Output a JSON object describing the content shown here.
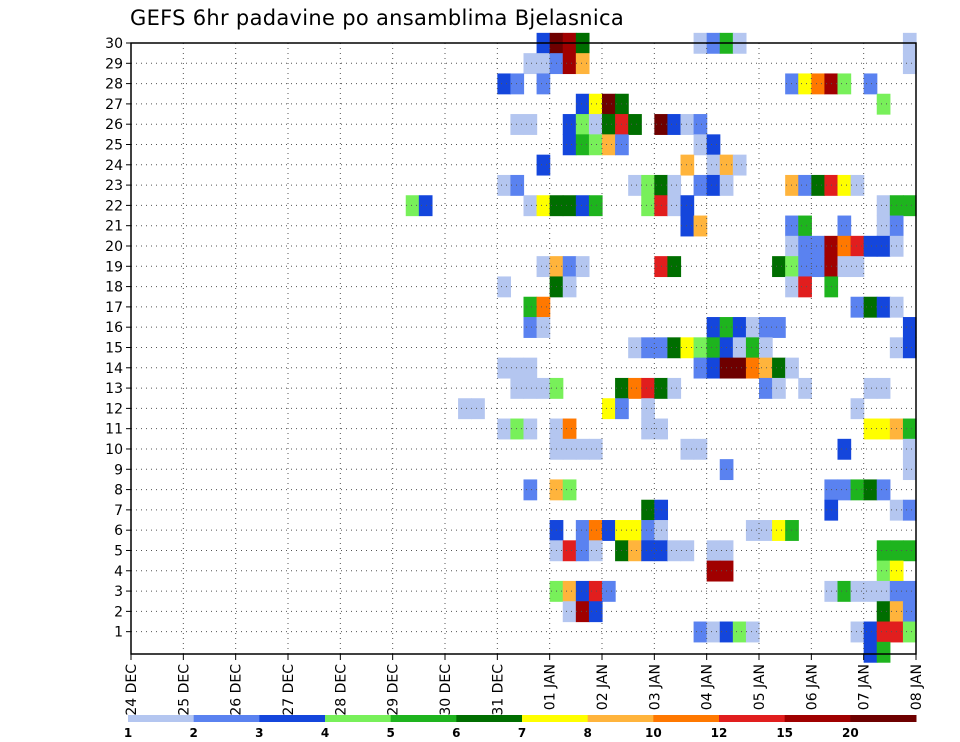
{
  "chart_data": {
    "type": "heatmap",
    "title": "GEFS 6hr padavine po ansamblima Bjelasnica",
    "x_tick_labels": [
      "24 DEC",
      "25 DEC",
      "26 DEC",
      "27 DEC",
      "28 DEC",
      "29 DEC",
      "30 DEC",
      "31 DEC",
      "01 JAN",
      "02 JAN",
      "03 JAN",
      "04 JAN",
      "05 JAN",
      "06 JAN",
      "07 JAN",
      "08 JAN"
    ],
    "y_tick_labels": [
      "1",
      "2",
      "3",
      "4",
      "5",
      "6",
      "7",
      "8",
      "9",
      "10",
      "11",
      "12",
      "13",
      "14",
      "15",
      "16",
      "17",
      "18",
      "19",
      "20",
      "21",
      "22",
      "23",
      "24",
      "25",
      "26",
      "27",
      "28",
      "29",
      "30"
    ],
    "x_unit": "6-hour steps from 24 DEC 00Z (4 per day)",
    "x_range_steps": [
      0,
      60
    ],
    "y_range": [
      0,
      30
    ],
    "grid": true,
    "colorbar": {
      "position": "bottom",
      "boundaries": [
        1,
        2,
        3,
        4,
        5,
        6,
        7,
        8,
        10,
        12,
        15,
        20
      ],
      "boundary_labels": [
        "1",
        "2",
        "3",
        "4",
        "5",
        "6",
        "7",
        "8",
        "10",
        "12",
        "15",
        "20"
      ],
      "colors": [
        "#b4c6f0",
        "#5a82f0",
        "#1446dc",
        "#78f05a",
        "#1eb41e",
        "#006e00",
        "#ffff00",
        "#ffb43c",
        "#ff7800",
        "#e11e1e",
        "#a00000",
        "#6e0000"
      ]
    },
    "cells": [
      [
        30,
        29,
        0
      ],
      [
        31,
        30,
        2
      ],
      [
        32,
        30,
        11
      ],
      [
        33,
        30,
        10
      ],
      [
        34,
        30,
        5
      ],
      [
        43,
        30,
        0
      ],
      [
        44,
        30,
        1
      ],
      [
        45,
        30,
        4
      ],
      [
        46,
        30,
        0
      ],
      [
        59,
        30,
        0
      ],
      [
        31,
        29,
        0
      ],
      [
        32,
        29,
        1
      ],
      [
        33,
        29,
        10
      ],
      [
        34,
        29,
        7
      ],
      [
        59,
        29,
        0
      ],
      [
        28,
        28,
        2
      ],
      [
        29,
        28,
        1
      ],
      [
        31,
        28,
        1
      ],
      [
        50,
        28,
        1
      ],
      [
        51,
        28,
        6
      ],
      [
        52,
        28,
        8
      ],
      [
        53,
        28,
        10
      ],
      [
        54,
        28,
        3
      ],
      [
        56,
        28,
        1
      ],
      [
        34,
        27,
        2
      ],
      [
        35,
        27,
        6
      ],
      [
        36,
        27,
        11
      ],
      [
        37,
        27,
        5
      ],
      [
        57,
        27,
        3
      ],
      [
        29,
        26,
        0
      ],
      [
        30,
        26,
        0
      ],
      [
        33,
        26,
        2
      ],
      [
        34,
        26,
        3
      ],
      [
        35,
        26,
        0
      ],
      [
        36,
        26,
        5
      ],
      [
        37,
        26,
        9
      ],
      [
        38,
        26,
        5
      ],
      [
        40,
        26,
        11
      ],
      [
        41,
        26,
        2
      ],
      [
        42,
        26,
        0
      ],
      [
        43,
        26,
        1
      ],
      [
        33,
        25,
        2
      ],
      [
        34,
        25,
        4
      ],
      [
        35,
        25,
        3
      ],
      [
        36,
        25,
        7
      ],
      [
        37,
        25,
        1
      ],
      [
        43,
        25,
        0
      ],
      [
        44,
        25,
        2
      ],
      [
        31,
        24,
        2
      ],
      [
        42,
        24,
        7
      ],
      [
        44,
        24,
        0
      ],
      [
        45,
        24,
        7
      ],
      [
        46,
        24,
        0
      ],
      [
        28,
        23,
        0
      ],
      [
        29,
        23,
        1
      ],
      [
        38,
        23,
        0
      ],
      [
        39,
        23,
        3
      ],
      [
        40,
        23,
        5
      ],
      [
        41,
        23,
        0
      ],
      [
        43,
        23,
        1
      ],
      [
        44,
        23,
        2
      ],
      [
        45,
        23,
        0
      ],
      [
        50,
        23,
        7
      ],
      [
        51,
        23,
        1
      ],
      [
        52,
        23,
        5
      ],
      [
        53,
        23,
        9
      ],
      [
        54,
        23,
        6
      ],
      [
        55,
        23,
        0
      ],
      [
        21,
        22,
        3
      ],
      [
        22,
        22,
        2
      ],
      [
        30,
        22,
        0
      ],
      [
        31,
        22,
        6
      ],
      [
        32,
        22,
        5
      ],
      [
        33,
        22,
        5
      ],
      [
        34,
        22,
        2
      ],
      [
        35,
        22,
        4
      ],
      [
        39,
        22,
        3
      ],
      [
        40,
        22,
        9
      ],
      [
        41,
        22,
        0
      ],
      [
        42,
        22,
        2
      ],
      [
        57,
        22,
        0
      ],
      [
        58,
        22,
        4
      ],
      [
        59,
        22,
        4
      ],
      [
        42,
        21,
        2
      ],
      [
        43,
        21,
        7
      ],
      [
        50,
        21,
        1
      ],
      [
        51,
        21,
        4
      ],
      [
        54,
        21,
        1
      ],
      [
        57,
        21,
        0
      ],
      [
        58,
        21,
        1
      ],
      [
        50,
        20,
        0
      ],
      [
        51,
        20,
        1
      ],
      [
        52,
        20,
        1
      ],
      [
        53,
        20,
        10
      ],
      [
        54,
        20,
        8
      ],
      [
        55,
        20,
        9
      ],
      [
        56,
        20,
        2
      ],
      [
        57,
        20,
        2
      ],
      [
        58,
        20,
        0
      ],
      [
        31,
        19,
        0
      ],
      [
        32,
        19,
        7
      ],
      [
        33,
        19,
        1
      ],
      [
        34,
        19,
        0
      ],
      [
        40,
        19,
        9
      ],
      [
        41,
        19,
        5
      ],
      [
        49,
        19,
        5
      ],
      [
        50,
        19,
        3
      ],
      [
        51,
        19,
        1
      ],
      [
        52,
        19,
        1
      ],
      [
        53,
        19,
        10
      ],
      [
        54,
        19,
        0
      ],
      [
        55,
        19,
        0
      ],
      [
        28,
        18,
        0
      ],
      [
        32,
        18,
        5
      ],
      [
        33,
        18,
        0
      ],
      [
        50,
        18,
        0
      ],
      [
        51,
        18,
        9
      ],
      [
        53,
        18,
        4
      ],
      [
        30,
        17,
        4
      ],
      [
        31,
        17,
        8
      ],
      [
        55,
        17,
        1
      ],
      [
        56,
        17,
        5
      ],
      [
        57,
        17,
        2
      ],
      [
        58,
        17,
        0
      ],
      [
        30,
        16,
        1
      ],
      [
        31,
        16,
        0
      ],
      [
        44,
        16,
        2
      ],
      [
        45,
        16,
        4
      ],
      [
        46,
        16,
        2
      ],
      [
        47,
        16,
        0
      ],
      [
        48,
        16,
        1
      ],
      [
        49,
        16,
        1
      ],
      [
        59,
        16,
        2
      ],
      [
        38,
        15,
        0
      ],
      [
        39,
        15,
        1
      ],
      [
        40,
        15,
        1
      ],
      [
        41,
        15,
        5
      ],
      [
        42,
        15,
        6
      ],
      [
        43,
        15,
        3
      ],
      [
        44,
        15,
        4
      ],
      [
        45,
        15,
        2
      ],
      [
        46,
        15,
        0
      ],
      [
        47,
        15,
        4
      ],
      [
        48,
        15,
        0
      ],
      [
        58,
        15,
        0
      ],
      [
        59,
        15,
        2
      ],
      [
        28,
        14,
        0
      ],
      [
        29,
        14,
        0
      ],
      [
        30,
        14,
        0
      ],
      [
        43,
        14,
        1
      ],
      [
        44,
        14,
        2
      ],
      [
        45,
        14,
        11
      ],
      [
        46,
        14,
        11
      ],
      [
        47,
        14,
        8
      ],
      [
        48,
        14,
        7
      ],
      [
        49,
        14,
        5
      ],
      [
        50,
        14,
        0
      ],
      [
        29,
        13,
        0
      ],
      [
        30,
        13,
        0
      ],
      [
        31,
        13,
        0
      ],
      [
        32,
        13,
        3
      ],
      [
        37,
        13,
        5
      ],
      [
        38,
        13,
        8
      ],
      [
        39,
        13,
        9
      ],
      [
        40,
        13,
        5
      ],
      [
        41,
        13,
        0
      ],
      [
        48,
        13,
        1
      ],
      [
        49,
        13,
        0
      ],
      [
        51,
        13,
        0
      ],
      [
        56,
        13,
        0
      ],
      [
        57,
        13,
        0
      ],
      [
        25,
        12,
        0
      ],
      [
        26,
        12,
        0
      ],
      [
        36,
        12,
        6
      ],
      [
        37,
        12,
        1
      ],
      [
        39,
        12,
        0
      ],
      [
        55,
        12,
        0
      ],
      [
        28,
        11,
        0
      ],
      [
        29,
        11,
        3
      ],
      [
        30,
        11,
        0
      ],
      [
        32,
        11,
        0
      ],
      [
        33,
        11,
        8
      ],
      [
        39,
        11,
        0
      ],
      [
        40,
        11,
        0
      ],
      [
        56,
        11,
        6
      ],
      [
        57,
        11,
        6
      ],
      [
        58,
        11,
        7
      ],
      [
        59,
        11,
        4
      ],
      [
        32,
        10,
        0
      ],
      [
        33,
        10,
        0
      ],
      [
        34,
        10,
        0
      ],
      [
        35,
        10,
        0
      ],
      [
        42,
        10,
        0
      ],
      [
        43,
        10,
        0
      ],
      [
        54,
        10,
        2
      ],
      [
        59,
        10,
        0
      ],
      [
        45,
        9,
        1
      ],
      [
        59,
        9,
        0
      ],
      [
        30,
        8,
        1
      ],
      [
        32,
        8,
        7
      ],
      [
        33,
        8,
        3
      ],
      [
        53,
        8,
        1
      ],
      [
        54,
        8,
        1
      ],
      [
        55,
        8,
        4
      ],
      [
        56,
        8,
        5
      ],
      [
        57,
        8,
        1
      ],
      [
        39,
        7,
        5
      ],
      [
        40,
        7,
        2
      ],
      [
        53,
        7,
        2
      ],
      [
        58,
        7,
        0
      ],
      [
        59,
        7,
        1
      ],
      [
        32,
        6,
        2
      ],
      [
        34,
        6,
        1
      ],
      [
        35,
        6,
        8
      ],
      [
        36,
        6,
        2
      ],
      [
        37,
        6,
        6
      ],
      [
        38,
        6,
        6
      ],
      [
        39,
        6,
        1
      ],
      [
        40,
        6,
        0
      ],
      [
        47,
        6,
        0
      ],
      [
        48,
        6,
        0
      ],
      [
        49,
        6,
        6
      ],
      [
        50,
        6,
        4
      ],
      [
        32,
        5,
        0
      ],
      [
        33,
        5,
        9
      ],
      [
        34,
        5,
        1
      ],
      [
        35,
        5,
        0
      ],
      [
        37,
        5,
        5
      ],
      [
        38,
        5,
        7
      ],
      [
        39,
        5,
        2
      ],
      [
        40,
        5,
        2
      ],
      [
        41,
        5,
        0
      ],
      [
        42,
        5,
        0
      ],
      [
        44,
        5,
        0
      ],
      [
        45,
        5,
        0
      ],
      [
        57,
        5,
        4
      ],
      [
        58,
        5,
        4
      ],
      [
        59,
        5,
        4
      ],
      [
        44,
        4,
        10
      ],
      [
        45,
        4,
        10
      ],
      [
        57,
        4,
        3
      ],
      [
        58,
        4,
        6
      ],
      [
        32,
        3,
        3
      ],
      [
        33,
        3,
        7
      ],
      [
        34,
        3,
        2
      ],
      [
        35,
        3,
        9
      ],
      [
        36,
        3,
        1
      ],
      [
        53,
        3,
        0
      ],
      [
        54,
        3,
        4
      ],
      [
        55,
        3,
        0
      ],
      [
        56,
        3,
        0
      ],
      [
        57,
        3,
        0
      ],
      [
        58,
        3,
        1
      ],
      [
        59,
        3,
        1
      ],
      [
        33,
        2,
        0
      ],
      [
        34,
        2,
        10
      ],
      [
        35,
        2,
        2
      ],
      [
        57,
        2,
        5
      ],
      [
        58,
        2,
        7
      ],
      [
        59,
        2,
        1
      ],
      [
        43,
        1,
        1
      ],
      [
        44,
        1,
        0
      ],
      [
        45,
        1,
        2
      ],
      [
        46,
        1,
        3
      ],
      [
        47,
        1,
        0
      ],
      [
        55,
        1,
        0
      ],
      [
        56,
        1,
        2
      ],
      [
        57,
        1,
        9
      ],
      [
        58,
        1,
        9
      ],
      [
        59,
        1,
        3
      ],
      [
        56,
        0,
        2
      ],
      [
        57,
        0,
        4
      ]
    ]
  }
}
